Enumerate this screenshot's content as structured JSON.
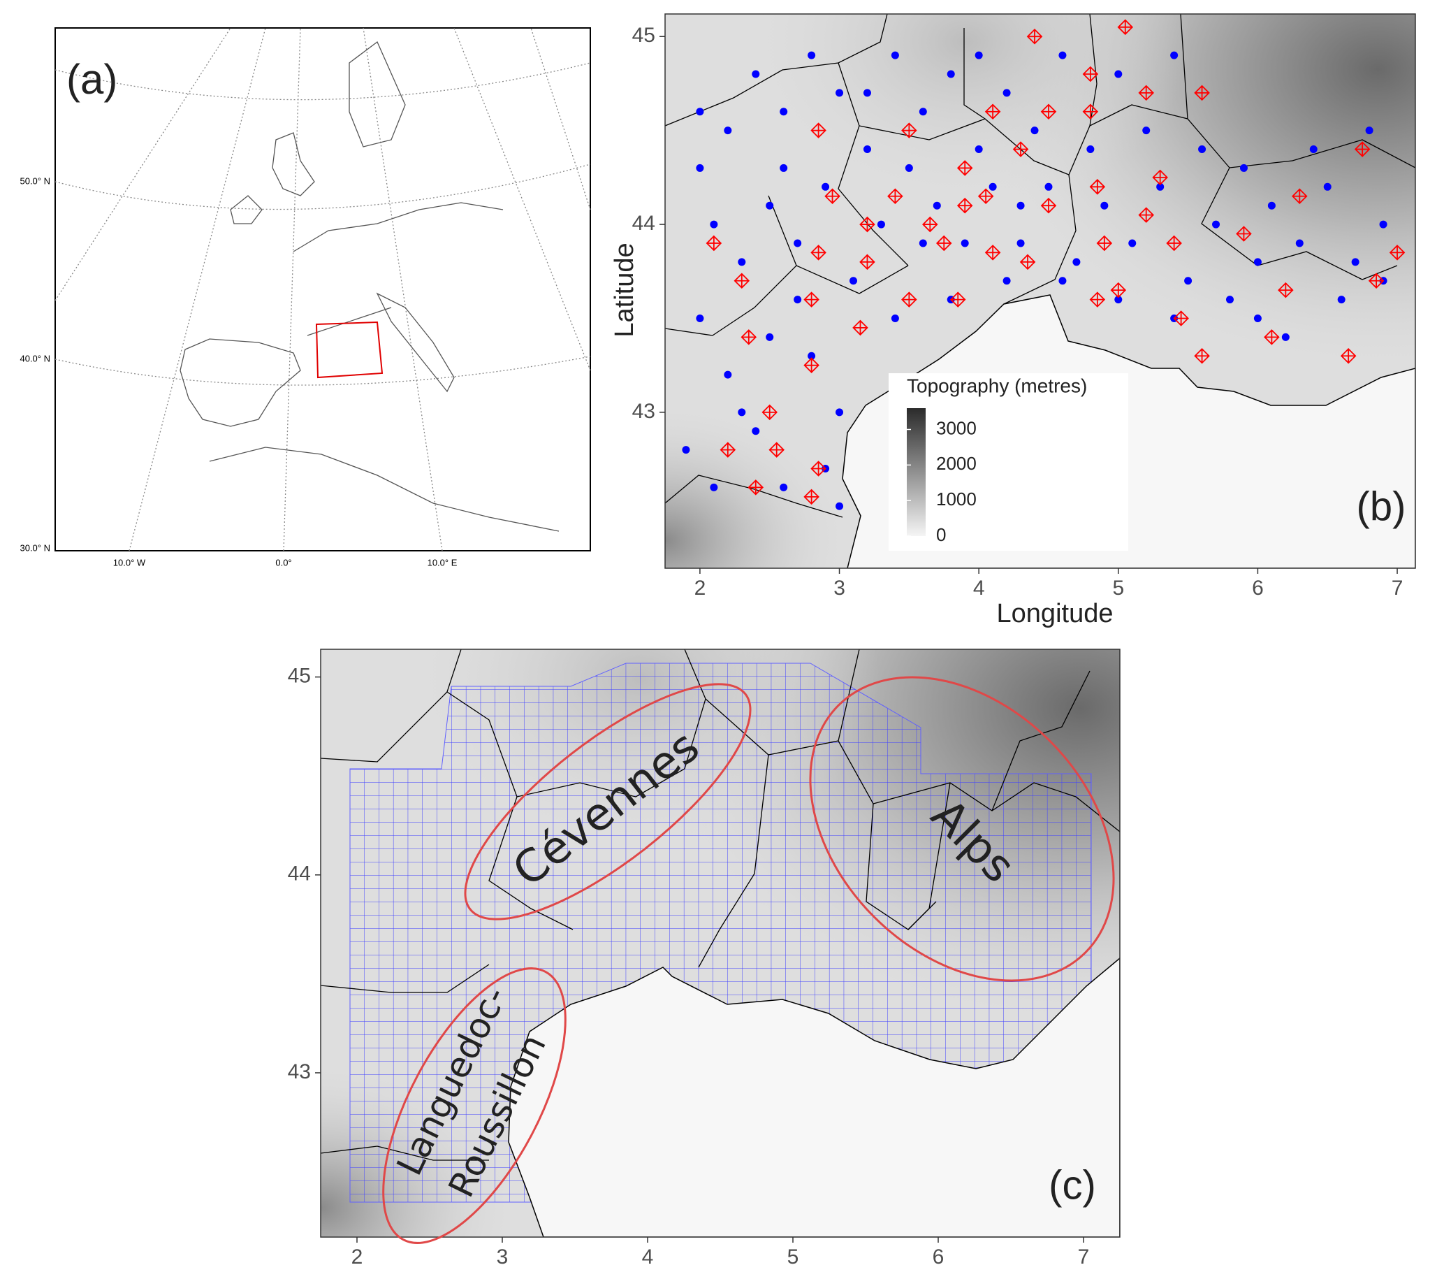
{
  "panel_a": {
    "label": "(a)",
    "lat_labels": [
      "50.0° N",
      "40.0° N",
      "30.0° N"
    ],
    "lon_labels": [
      "10.0° W",
      "0.0°",
      "10.0° E"
    ]
  },
  "panel_b": {
    "label": "(b)",
    "x_label": "Longitude",
    "y_label": "Latitude",
    "xlim": [
      1.75,
      7.13
    ],
    "ylim": [
      42.17,
      45.12
    ],
    "xticks": [
      2,
      3,
      4,
      5,
      6,
      7
    ],
    "yticks": [
      43,
      44,
      45
    ],
    "legend": {
      "title": "Topography (metres)",
      "limits": [
        0,
        3600
      ],
      "ticks": [
        0,
        1000,
        2000,
        3000
      ]
    },
    "stations": {
      "color": "#0000ff",
      "x": [
        2.0,
        2.2,
        2.4,
        2.6,
        2.8,
        3.0,
        3.2,
        3.4,
        3.6,
        3.8,
        4.0,
        4.2,
        4.4,
        4.6,
        4.8,
        5.0,
        5.2,
        5.4,
        2.1,
        2.3,
        2.5,
        2.7,
        2.9,
        3.1,
        3.3,
        3.5,
        3.7,
        3.9,
        4.1,
        4.3,
        4.5,
        4.7,
        4.9,
        5.1,
        5.3,
        5.5,
        5.7,
        5.9,
        6.1,
        6.3,
        6.5,
        6.7,
        6.9,
        6.8,
        6.4,
        5.8,
        6.0,
        6.2,
        6.6,
        6.9,
        5.4,
        5.0,
        4.6,
        4.2,
        3.8,
        3.4,
        2.0,
        2.2,
        2.4,
        2.6,
        2.8,
        3.0,
        2.1,
        2.9,
        3.0,
        2.5,
        2.7,
        2.3,
        1.9,
        2.0,
        4.3,
        3.6,
        5.6,
        6.0,
        4.0,
        2.6,
        3.2
      ],
      "y": [
        44.3,
        44.5,
        44.8,
        44.6,
        44.9,
        44.7,
        44.4,
        44.9,
        44.6,
        44.8,
        44.9,
        44.7,
        44.5,
        44.9,
        44.4,
        44.8,
        44.5,
        44.9,
        44.0,
        43.8,
        44.1,
        43.9,
        44.2,
        43.7,
        44.0,
        44.3,
        44.1,
        43.9,
        44.2,
        43.9,
        44.2,
        43.8,
        44.1,
        43.9,
        44.2,
        43.7,
        44.0,
        44.3,
        44.1,
        43.9,
        44.2,
        43.8,
        44.0,
        44.5,
        44.4,
        43.6,
        43.5,
        43.4,
        43.6,
        43.7,
        43.5,
        43.6,
        43.7,
        43.7,
        43.6,
        43.5,
        43.5,
        43.2,
        42.9,
        42.6,
        43.3,
        43.0,
        42.6,
        42.7,
        42.5,
        43.4,
        43.6,
        43.0,
        42.8,
        44.6,
        44.1,
        43.9,
        44.4,
        43.8,
        44.4,
        44.3,
        44.7
      ]
    },
    "reference_stations": {
      "color": "#ff0000",
      "x": [
        2.1,
        2.3,
        2.35,
        2.2,
        2.5,
        2.55,
        2.4,
        2.8,
        2.85,
        2.8,
        2.8,
        2.85,
        2.85,
        2.95,
        3.2,
        3.2,
        3.15,
        3.5,
        3.4,
        3.5,
        3.65,
        3.75,
        3.85,
        3.9,
        3.9,
        4.05,
        4.1,
        4.1,
        4.3,
        4.35,
        4.4,
        4.5,
        4.5,
        4.8,
        4.8,
        4.85,
        4.9,
        4.85,
        5.0,
        5.05,
        5.2,
        5.2,
        5.3,
        5.4,
        5.45,
        5.6,
        5.6,
        5.9,
        6.1,
        6.2,
        6.3,
        6.65,
        6.75,
        6.85,
        7.0
      ],
      "y": [
        43.9,
        43.7,
        43.4,
        42.8,
        43.0,
        42.8,
        42.6,
        42.55,
        42.7,
        43.25,
        43.6,
        43.85,
        44.5,
        44.15,
        44.0,
        43.8,
        43.45,
        44.5,
        44.15,
        43.6,
        44.0,
        43.9,
        43.6,
        44.1,
        44.3,
        44.15,
        43.85,
        44.6,
        44.4,
        43.8,
        45.0,
        44.6,
        44.1,
        44.8,
        44.6,
        44.2,
        43.9,
        43.6,
        43.65,
        45.05,
        44.7,
        44.05,
        44.25,
        43.9,
        43.5,
        44.7,
        43.3,
        43.95,
        43.4,
        43.65,
        44.15,
        43.3,
        44.4,
        43.7,
        43.85
      ]
    }
  },
  "panel_c": {
    "label": "(c)",
    "xlim": [
      1.75,
      7.25
    ],
    "ylim": [
      42.17,
      45.14
    ],
    "xticks": [
      2,
      3,
      4,
      5,
      6,
      7
    ],
    "yticks": [
      43,
      44,
      45
    ],
    "regions": [
      "Cévennes",
      "Alps",
      [
        "Languedoc-",
        "Roussillon"
      ]
    ]
  }
}
